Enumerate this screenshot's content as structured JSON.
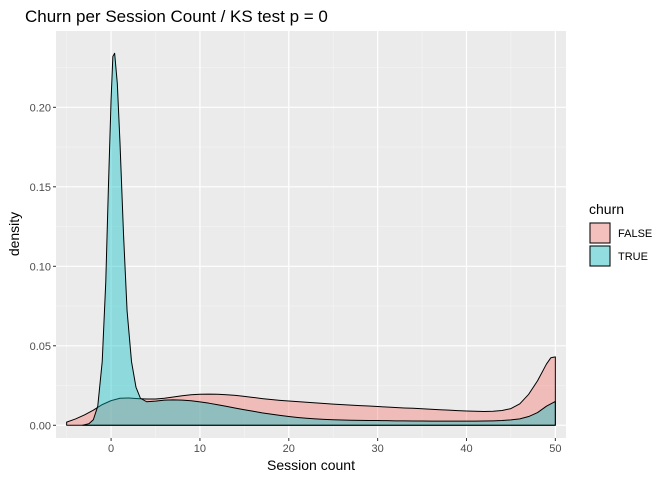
{
  "chart_data": {
    "type": "area",
    "title": "Churn per Session Count / KS test p = 0",
    "xlabel": "Session count",
    "ylabel": "density",
    "xlim": [
      -6.2,
      51.2
    ],
    "ylim": [
      -0.008,
      0.248
    ],
    "x_ticks": [
      0,
      10,
      20,
      30,
      40,
      50
    ],
    "x_tick_labels": [
      "0",
      "10",
      "20",
      "30",
      "40",
      "50"
    ],
    "y_ticks": [
      0.0,
      0.05,
      0.1,
      0.15,
      0.2
    ],
    "y_tick_labels": [
      "0.00",
      "0.05",
      "0.10",
      "0.15",
      "0.20"
    ],
    "grid": true,
    "legend": {
      "title": "churn",
      "position": "right"
    },
    "series": [
      {
        "name": "FALSE",
        "fill": "#f8766d",
        "points": [
          [
            -5,
            0.002
          ],
          [
            -4,
            0.004
          ],
          [
            -3,
            0.0065
          ],
          [
            -2,
            0.0095
          ],
          [
            -1,
            0.013
          ],
          [
            0,
            0.0155
          ],
          [
            1,
            0.017
          ],
          [
            2,
            0.0172
          ],
          [
            3,
            0.0168
          ],
          [
            4,
            0.0165
          ],
          [
            5,
            0.0165
          ],
          [
            6,
            0.017
          ],
          [
            7,
            0.0178
          ],
          [
            8,
            0.0186
          ],
          [
            9,
            0.0192
          ],
          [
            10,
            0.0195
          ],
          [
            11,
            0.0196
          ],
          [
            12,
            0.0195
          ],
          [
            13,
            0.0192
          ],
          [
            14,
            0.0188
          ],
          [
            15,
            0.0182
          ],
          [
            16,
            0.0175
          ],
          [
            17,
            0.0168
          ],
          [
            18,
            0.0162
          ],
          [
            19,
            0.0157
          ],
          [
            20,
            0.0153
          ],
          [
            21,
            0.0149
          ],
          [
            22,
            0.0145
          ],
          [
            23,
            0.0141
          ],
          [
            24,
            0.0137
          ],
          [
            25,
            0.0133
          ],
          [
            26,
            0.013
          ],
          [
            27,
            0.0127
          ],
          [
            28,
            0.0124
          ],
          [
            29,
            0.0121
          ],
          [
            30,
            0.0118
          ],
          [
            31,
            0.0115
          ],
          [
            32,
            0.0112
          ],
          [
            33,
            0.0109
          ],
          [
            34,
            0.0107
          ],
          [
            35,
            0.0104
          ],
          [
            36,
            0.0101
          ],
          [
            37,
            0.0098
          ],
          [
            38,
            0.0095
          ],
          [
            39,
            0.0092
          ],
          [
            40,
            0.009
          ],
          [
            41,
            0.0088
          ],
          [
            42,
            0.0087
          ],
          [
            43,
            0.0088
          ],
          [
            44,
            0.0093
          ],
          [
            45,
            0.0105
          ],
          [
            46,
            0.0135
          ],
          [
            47,
            0.0195
          ],
          [
            48,
            0.028
          ],
          [
            49,
            0.0385
          ],
          [
            49.5,
            0.0425
          ],
          [
            50,
            0.043
          ]
        ]
      },
      {
        "name": "TRUE",
        "fill": "#00bfc4",
        "points": [
          [
            -3.2,
            0.0
          ],
          [
            -2.5,
            0.001
          ],
          [
            -2,
            0.0035
          ],
          [
            -1.5,
            0.012
          ],
          [
            -1,
            0.04
          ],
          [
            -0.6,
            0.09
          ],
          [
            -0.3,
            0.15
          ],
          [
            0,
            0.205
          ],
          [
            0.2,
            0.232
          ],
          [
            0.4,
            0.234
          ],
          [
            0.7,
            0.215
          ],
          [
            1,
            0.178
          ],
          [
            1.4,
            0.12
          ],
          [
            1.8,
            0.072
          ],
          [
            2.3,
            0.04
          ],
          [
            2.8,
            0.024
          ],
          [
            3.3,
            0.017
          ],
          [
            4,
            0.0148
          ],
          [
            5,
            0.0152
          ],
          [
            6,
            0.0158
          ],
          [
            7,
            0.016
          ],
          [
            8,
            0.0158
          ],
          [
            9,
            0.0154
          ],
          [
            10,
            0.0147
          ],
          [
            11,
            0.0139
          ],
          [
            12,
            0.0129
          ],
          [
            13,
            0.0119
          ],
          [
            14,
            0.0108
          ],
          [
            15,
            0.0098
          ],
          [
            16,
            0.0088
          ],
          [
            17,
            0.0078
          ],
          [
            18,
            0.007
          ],
          [
            19,
            0.0062
          ],
          [
            20,
            0.0055
          ],
          [
            21,
            0.0049
          ],
          [
            22,
            0.0044
          ],
          [
            23,
            0.004
          ],
          [
            24,
            0.0037
          ],
          [
            25,
            0.0035
          ],
          [
            26,
            0.0033
          ],
          [
            27,
            0.0032
          ],
          [
            28,
            0.0031
          ],
          [
            29,
            0.003
          ],
          [
            30,
            0.003
          ],
          [
            31,
            0.0029
          ],
          [
            32,
            0.0028
          ],
          [
            33,
            0.0028
          ],
          [
            34,
            0.0027
          ],
          [
            35,
            0.0027
          ],
          [
            36,
            0.0026
          ],
          [
            37,
            0.0026
          ],
          [
            38,
            0.0026
          ],
          [
            39,
            0.0026
          ],
          [
            40,
            0.0026
          ],
          [
            41,
            0.0026
          ],
          [
            42,
            0.0027
          ],
          [
            43,
            0.0028
          ],
          [
            44,
            0.003
          ],
          [
            45,
            0.0034
          ],
          [
            46,
            0.004
          ],
          [
            47,
            0.0055
          ],
          [
            48,
            0.008
          ],
          [
            49,
            0.012
          ],
          [
            50,
            0.015
          ]
        ]
      }
    ]
  }
}
